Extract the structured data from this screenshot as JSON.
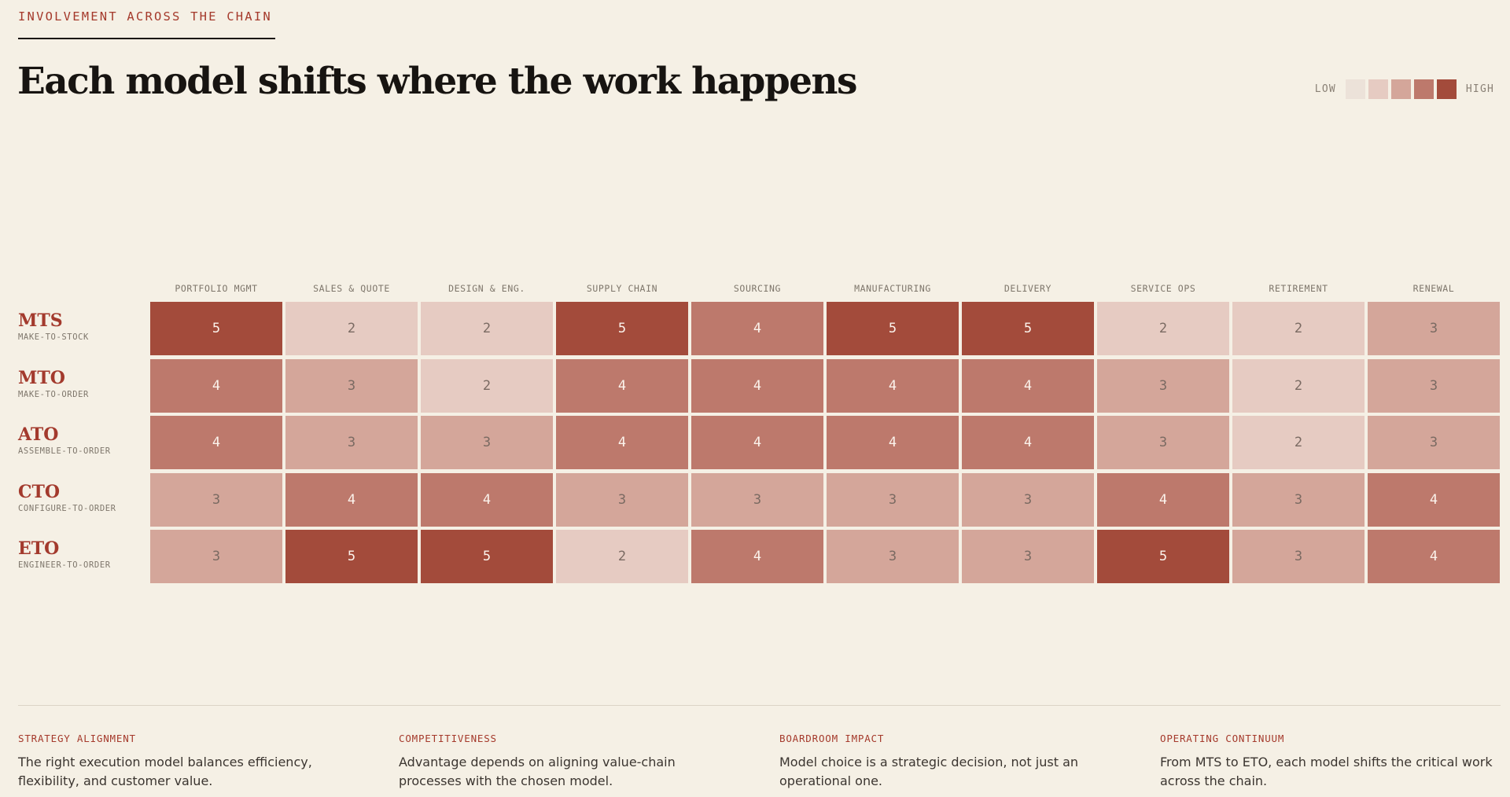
{
  "header": {
    "eyebrow": "INVOLVEMENT ACROSS THE CHAIN",
    "title": "Each model shifts where the work happens"
  },
  "legend": {
    "low_label": "LOW",
    "high_label": "HIGH",
    "swatches": [
      "#ece2d9",
      "#e6cbc2",
      "#d4a69a",
      "#bd796c",
      "#a34b3b"
    ]
  },
  "colors": {
    "levels": {
      "1": "#ece2d9",
      "2": "#e6cbc2",
      "3": "#d4a69a",
      "4": "#bd796c",
      "5": "#a34b3b"
    },
    "text_dark": "#7a6a62",
    "text_light": "#fbf3ec",
    "accent": "#a53a2c"
  },
  "chart_data": {
    "type": "heatmap",
    "columns": [
      "PORTFOLIO MGMT",
      "SALES & QUOTE",
      "DESIGN & ENG.",
      "SUPPLY CHAIN",
      "SOURCING",
      "MANUFACTURING",
      "DELIVERY",
      "SERVICE OPS",
      "RETIREMENT",
      "RENEWAL"
    ],
    "rows": [
      {
        "code": "MTS",
        "name": "MAKE-TO-STOCK",
        "values": [
          5,
          2,
          2,
          5,
          4,
          5,
          5,
          2,
          2,
          3
        ]
      },
      {
        "code": "MTO",
        "name": "MAKE-TO-ORDER",
        "values": [
          4,
          3,
          2,
          4,
          4,
          4,
          4,
          3,
          2,
          3
        ]
      },
      {
        "code": "ATO",
        "name": "ASSEMBLE-TO-ORDER",
        "values": [
          4,
          3,
          3,
          4,
          4,
          4,
          4,
          3,
          2,
          3
        ]
      },
      {
        "code": "CTO",
        "name": "CONFIGURE-TO-ORDER",
        "values": [
          3,
          4,
          4,
          3,
          3,
          3,
          3,
          4,
          3,
          4
        ]
      },
      {
        "code": "ETO",
        "name": "ENGINEER-TO-ORDER",
        "values": [
          3,
          5,
          5,
          2,
          4,
          3,
          3,
          5,
          3,
          4
        ]
      }
    ],
    "scale": [
      1,
      5
    ]
  },
  "footer": [
    {
      "heading": "STRATEGY ALIGNMENT",
      "body": "The right execution model balances efficiency, flexibility, and customer value."
    },
    {
      "heading": "COMPETITIVENESS",
      "body": "Advantage depends on aligning value-chain processes with the chosen model."
    },
    {
      "heading": "BOARDROOM IMPACT",
      "body": "Model choice is a strategic decision, not just an operational one."
    },
    {
      "heading": "OPERATING CONTINUUM",
      "body": "From MTS to ETO, each model shifts the critical work across the chain."
    }
  ]
}
